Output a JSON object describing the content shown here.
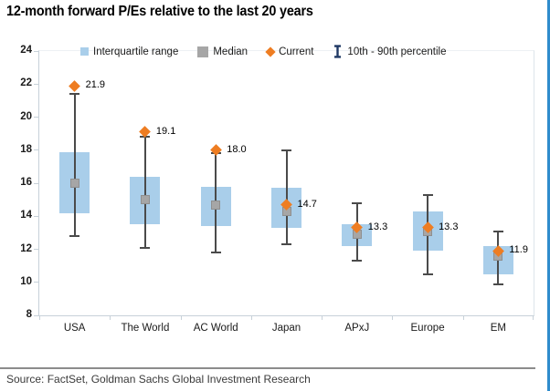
{
  "title": "12-month forward P/Es relative to the last 20 years",
  "source": "Source: FactSet, Goldman Sachs Global Investment Research",
  "legend": {
    "iqr": "Interquartile range",
    "median": "Median",
    "current": "Current",
    "percentile": "10th - 90th percentile"
  },
  "colors": {
    "box": "#A9CEEA",
    "median": "#A6A6A6",
    "current": "#EE7D22",
    "whisker": "#4A4A4A",
    "ibeam": "#1F3864",
    "axis": "#C7D1D9",
    "border": "#2F8CCC",
    "divider": "#8C8C8C"
  },
  "chart_data": {
    "type": "box",
    "title": "12-month forward P/Es relative to the last 20 years",
    "xlabel": "",
    "ylabel": "",
    "ylim": [
      8,
      24
    ],
    "yticks": [
      8,
      10,
      12,
      14,
      16,
      18,
      20,
      22,
      24
    ],
    "grid": false,
    "legend_position": "top",
    "legend_entries": [
      "Interquartile range",
      "Median",
      "Current",
      "10th - 90th percentile"
    ],
    "categories": [
      "USA",
      "The World",
      "AC World",
      "Japan",
      "APxJ",
      "Europe",
      "EM"
    ],
    "series": [
      {
        "category": "USA",
        "p10": 12.8,
        "q1": 14.2,
        "median": 16.0,
        "q3": 17.9,
        "p90": 21.4,
        "current": 21.9,
        "label": "21.9"
      },
      {
        "category": "The World",
        "p10": 12.1,
        "q1": 13.5,
        "median": 15.0,
        "q3": 16.4,
        "p90": 18.8,
        "current": 19.1,
        "label": "19.1"
      },
      {
        "category": "AC World",
        "p10": 11.8,
        "q1": 13.4,
        "median": 14.7,
        "q3": 15.8,
        "p90": 17.8,
        "current": 18.0,
        "label": "18.0"
      },
      {
        "category": "Japan",
        "p10": 12.3,
        "q1": 13.3,
        "median": 14.3,
        "q3": 15.7,
        "p90": 18.0,
        "current": 14.7,
        "label": "14.7"
      },
      {
        "category": "APxJ",
        "p10": 11.3,
        "q1": 12.2,
        "median": 12.9,
        "q3": 13.5,
        "p90": 14.8,
        "current": 13.3,
        "label": "13.3"
      },
      {
        "category": "Europe",
        "p10": 10.5,
        "q1": 11.9,
        "median": 13.1,
        "q3": 14.3,
        "p90": 15.3,
        "current": 13.3,
        "label": "13.3"
      },
      {
        "category": "EM",
        "p10": 9.9,
        "q1": 10.5,
        "median": 11.6,
        "q3": 12.2,
        "p90": 13.1,
        "current": 11.9,
        "label": "11.9"
      }
    ]
  }
}
